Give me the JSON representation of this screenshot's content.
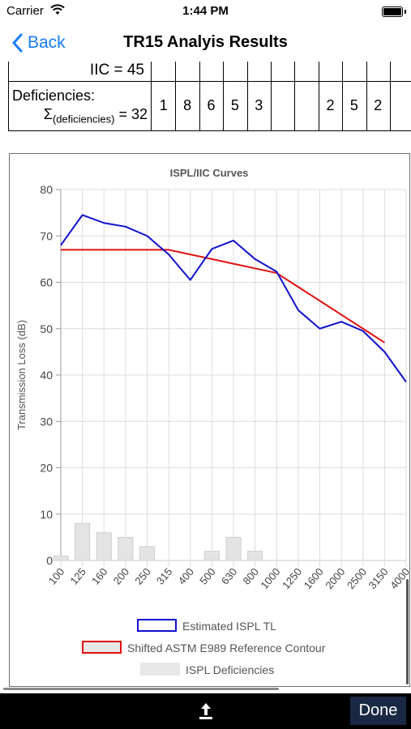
{
  "status_bar": {
    "carrier": "Carrier",
    "time": "1:44 PM"
  },
  "nav": {
    "back_label": "Back",
    "title": "TR15 Analyis Results"
  },
  "table": {
    "iic_label": "IIC = 45",
    "deficiencies_label": "Deficiencies:",
    "deficiencies_sum_prefix": "Σ",
    "deficiencies_sum_sub": "(deficiencies)",
    "deficiencies_sum_suffix": " = 32",
    "deficiency_cells": [
      "1",
      "8",
      "6",
      "5",
      "3",
      "",
      "",
      "2",
      "5",
      "2",
      ""
    ]
  },
  "chart_data": {
    "type": "line",
    "title": "ISPL/IIC Curves",
    "ylabel": "Transmission Loss (dB)",
    "xlabel": "",
    "ylim": [
      0,
      80
    ],
    "yticks": [
      0,
      10,
      20,
      30,
      40,
      50,
      60,
      70,
      80
    ],
    "categories": [
      "100",
      "125",
      "160",
      "200",
      "250",
      "315",
      "400",
      "500",
      "630",
      "800",
      "1000",
      "1250",
      "1600",
      "2000",
      "2500",
      "3150",
      "4000"
    ],
    "series": [
      {
        "name": "Estimated ISPL TL",
        "kind": "line",
        "color": "#1010cc",
        "values": [
          68,
          74.5,
          72.8,
          72,
          70,
          66,
          60.5,
          67.2,
          69,
          65,
          62.3,
          54,
          50,
          51.5,
          49.5,
          45,
          38.5
        ]
      },
      {
        "name": "Shifted ASTM E989 Reference Contour",
        "kind": "line",
        "color": "#e01010",
        "values": [
          67,
          67,
          67,
          67,
          67,
          67,
          66,
          65,
          64,
          63,
          62,
          59,
          56,
          53,
          50,
          47,
          null
        ]
      },
      {
        "name": "ISPL Deficiencies",
        "kind": "bar",
        "color": "#e4e4e4",
        "values": [
          1,
          8,
          6,
          5,
          3,
          0,
          0,
          2,
          5,
          2,
          0,
          0,
          0,
          0,
          0,
          0,
          0
        ]
      }
    ],
    "grid": true,
    "legend": "bottom"
  },
  "toolbar": {
    "done_label": "Done"
  },
  "icons": {
    "back": "chevron-left-icon",
    "share": "share-icon",
    "wifi": "wifi-icon",
    "battery": "battery-icon"
  }
}
